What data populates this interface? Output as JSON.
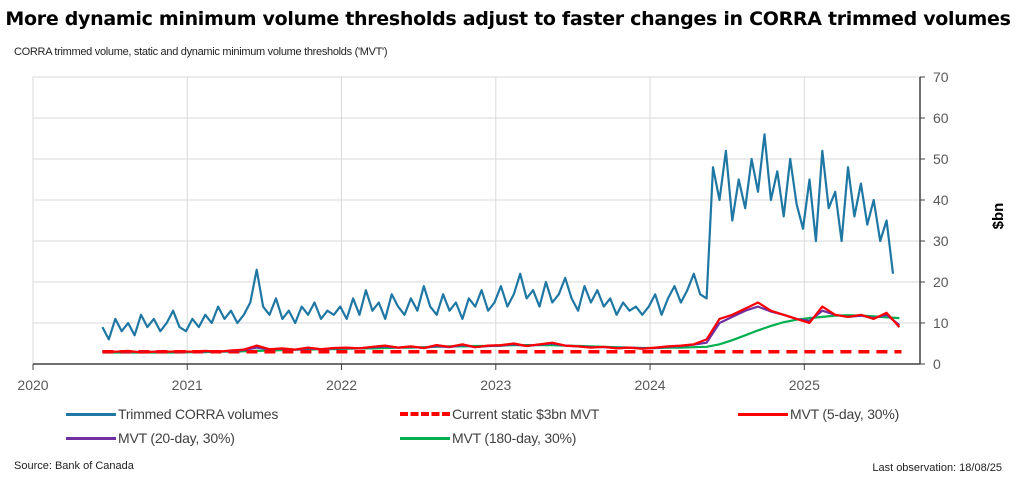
{
  "chart_data": {
    "type": "line",
    "title": "More dynamic minimum volume thresholds adjust to faster changes in CORRA trimmed volumes",
    "subtitle": "CORRA trimmed volume, static and dynamic minimum volume thresholds ('MVT')",
    "ylabel": "$bn",
    "ylim": [
      0,
      70
    ],
    "yticks": [
      "0",
      "10",
      "20",
      "30",
      "40",
      "50",
      "60",
      "70"
    ],
    "xlim": [
      2020,
      2025.75
    ],
    "xticks": [
      "2020",
      "2021",
      "2022",
      "2023",
      "2024",
      "2025"
    ],
    "grid": true,
    "legend_position": "bottom",
    "series": [
      {
        "name": "Trimmed CORRA volumes",
        "color": "#1f77a4",
        "dash": false,
        "x_start": 2020.45,
        "x_step": 0.041667,
        "values": [
          9,
          6,
          11,
          8,
          10,
          7,
          12,
          9,
          11,
          8,
          10,
          13,
          9,
          8,
          11,
          9,
          12,
          10,
          14,
          11,
          13,
          10,
          12,
          15,
          23,
          14,
          12,
          16,
          11,
          13,
          10,
          14,
          12,
          15,
          11,
          13,
          12,
          14,
          11,
          16,
          12,
          18,
          13,
          15,
          11,
          17,
          14,
          12,
          16,
          13,
          19,
          14,
          12,
          17,
          13,
          15,
          11,
          16,
          14,
          18,
          13,
          15,
          19,
          14,
          17,
          22,
          16,
          18,
          14,
          20,
          15,
          17,
          21,
          16,
          13,
          19,
          15,
          18,
          14,
          16,
          12,
          15,
          13,
          14,
          12,
          14,
          17,
          12,
          16,
          19,
          15,
          18,
          22,
          17,
          16,
          48,
          40,
          52,
          35,
          45,
          38,
          50,
          42,
          56,
          40,
          47,
          36,
          50,
          39,
          33,
          45,
          30,
          52,
          38,
          42,
          30,
          48,
          36,
          44,
          34,
          40,
          30,
          35,
          22
        ]
      },
      {
        "name": "Current static $3bn MVT",
        "color": "#ff0000",
        "dash": true,
        "x_start": 2020.45,
        "x_step": 5.18,
        "values": [
          3,
          3
        ]
      },
      {
        "name": "MVT (5-day, 30%)",
        "color": "#ff0000",
        "dash": false,
        "x_start": 2020.45,
        "x_step": 0.083333,
        "values": [
          3,
          3,
          3.2,
          2.8,
          3,
          3,
          3.1,
          3,
          3.2,
          3,
          3.3,
          3.5,
          4.5,
          3.6,
          3.8,
          3.5,
          4,
          3.6,
          3.9,
          4,
          3.8,
          4.2,
          4.5,
          4,
          4.3,
          3.9,
          4.6,
          4.2,
          4.8,
          4.1,
          4.5,
          4.6,
          5,
          4.4,
          4.8,
          5.2,
          4.5,
          4.3,
          4,
          4.2,
          3.8,
          4,
          3.7,
          4,
          4.3,
          4.5,
          4.8,
          6,
          11,
          12,
          13.5,
          15,
          13,
          12,
          11,
          10,
          14,
          12,
          11.5,
          12,
          11,
          12.5,
          9
        ]
      },
      {
        "name": "MVT (20-day, 30%)",
        "color": "#7030a0",
        "dash": false,
        "x_start": 2020.45,
        "x_step": 0.083333,
        "values": [
          3,
          3,
          3.1,
          2.9,
          3,
          3,
          3,
          3,
          3.1,
          3,
          3.2,
          3.4,
          4,
          3.6,
          3.7,
          3.5,
          3.8,
          3.6,
          3.8,
          3.9,
          3.8,
          4.1,
          4.3,
          4,
          4.2,
          3.9,
          4.4,
          4.1,
          4.6,
          4.1,
          4.4,
          4.5,
          4.8,
          4.4,
          4.7,
          5,
          4.5,
          4.3,
          4.1,
          4.1,
          3.9,
          4,
          3.8,
          3.9,
          4.2,
          4.4,
          4.7,
          5.2,
          10,
          11.5,
          13,
          14,
          12.8,
          12,
          11,
          10.5,
          13,
          12,
          11.5,
          11.8,
          11.2,
          12,
          9.5
        ]
      },
      {
        "name": "MVT (180-day, 30%)",
        "color": "#00b050",
        "dash": false,
        "x_start": 2020.45,
        "x_step": 0.083333,
        "values": [
          2.8,
          2.8,
          2.8,
          2.8,
          2.8,
          2.8,
          2.8,
          2.9,
          2.9,
          3,
          3,
          3.1,
          3.2,
          3.3,
          3.4,
          3.5,
          3.5,
          3.6,
          3.6,
          3.7,
          3.8,
          3.8,
          3.9,
          4,
          4,
          4.1,
          4.2,
          4.3,
          4.3,
          4.4,
          4.4,
          4.5,
          4.6,
          4.6,
          4.6,
          4.6,
          4.5,
          4.4,
          4.3,
          4.2,
          4.1,
          4,
          3.9,
          3.9,
          4,
          4,
          4.1,
          4.2,
          4.8,
          5.8,
          7,
          8.2,
          9.3,
          10.2,
          10.8,
          11.2,
          11.5,
          11.8,
          11.9,
          11.8,
          11.6,
          11.4,
          11.2
        ]
      }
    ]
  },
  "footer": {
    "source": "Source: Bank of Canada",
    "last_observation": "Last observation: 18/08/25"
  }
}
